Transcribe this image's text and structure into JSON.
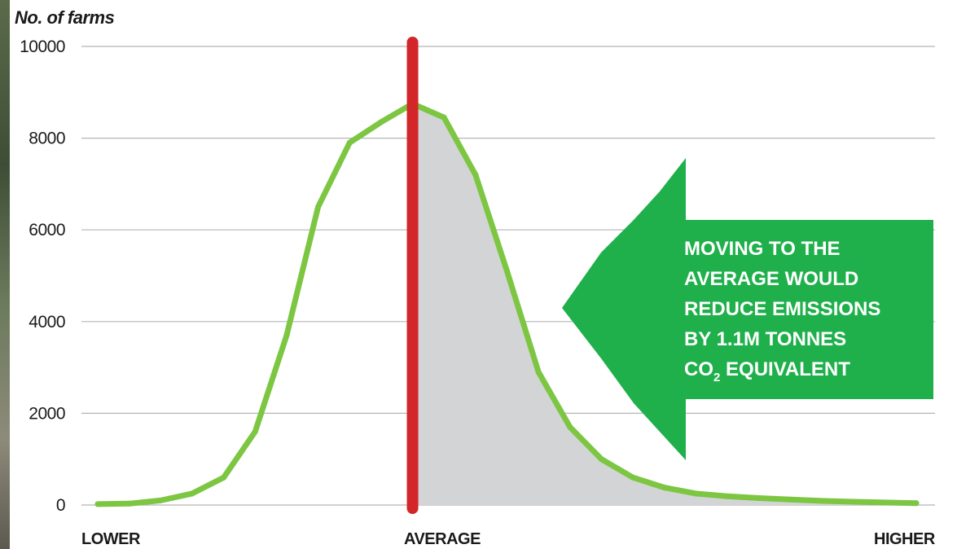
{
  "chart_data": {
    "type": "area",
    "ylabel": "No. of farms",
    "ylim": [
      0,
      10000
    ],
    "yticks": [
      0,
      2000,
      4000,
      6000,
      8000,
      10000
    ],
    "x_tick_labels": [
      "LOWER",
      "AVERAGE",
      "HIGHER"
    ],
    "grid": true,
    "series": [
      {
        "x": [
          0,
          1,
          2,
          3,
          4,
          5,
          6,
          7,
          8,
          9,
          10,
          11,
          12,
          13,
          14,
          15,
          16,
          17,
          18,
          19,
          20,
          21,
          22,
          23,
          24,
          25,
          26
        ],
        "values": [
          20,
          30,
          100,
          250,
          600,
          1600,
          3700,
          6500,
          7900,
          8350,
          8750,
          8450,
          7200,
          5100,
          2900,
          1700,
          1000,
          600,
          380,
          250,
          190,
          150,
          120,
          90,
          70,
          55,
          40
        ]
      }
    ],
    "average_x": 10,
    "shaded_from_average": true,
    "annotation": {
      "lines": [
        "MOVING TO THE",
        "AVERAGE WOULD",
        "REDUCE EMISSIONS",
        "BY 1.1M TONNES"
      ],
      "last_line_prefix": "CO",
      "last_line_subscript": "2",
      "last_line_suffix": " EQUIVALENT"
    },
    "colors": {
      "curve": "#7cc642",
      "average_line": "#d22628",
      "shade": "#d3d4d6",
      "annotation_bg": "#1fb04b",
      "grid": "#b5b5b5"
    }
  }
}
